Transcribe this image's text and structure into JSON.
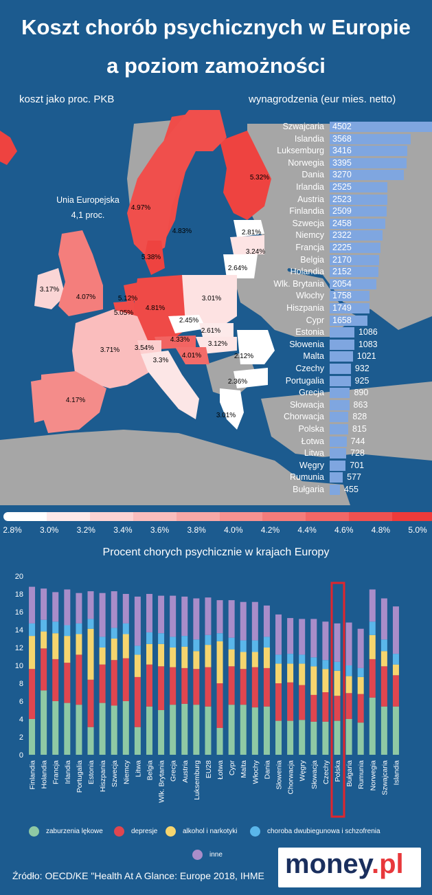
{
  "header": {
    "title_line1": "Koszt chorób psychicznych w Europie",
    "title_line2": "a poziom zamożności",
    "subtitle_left": "koszt jako proc. PKB",
    "subtitle_right": "wynagrodzenia (eur mies. netto)"
  },
  "map": {
    "eu_label_line1": "Unia Europejska",
    "eu_label_line2": "4,1 proc.",
    "colors": {
      "water": "#1c5b8f",
      "land_other": "#a6a6a6"
    },
    "country_labels": [
      "5.32%",
      "4.97%",
      "4.83%",
      "2.81%",
      "3.24%",
      "2.64%",
      "5.38%",
      "3.17%",
      "4.07%",
      "5.12%",
      "5.05%",
      "4.81%",
      "3.01%",
      "2.45%",
      "2.61%",
      "4.33%",
      "3.12%",
      "3.71%",
      "3.54%",
      "4.01%",
      "2.12%",
      "3.3%",
      "2.36%",
      "4.17%",
      "3.01%"
    ]
  },
  "scale": {
    "labels": [
      "2.8%",
      "3.0%",
      "3.2%",
      "3.4%",
      "3.6%",
      "3.8%",
      "4.0%",
      "4.2%",
      "4.4%",
      "4.6%",
      "4.8%",
      "5.0%"
    ],
    "colors": [
      "#ffffff",
      "#fde9e9",
      "#fcd3d3",
      "#fabdbd",
      "#f8a8a7",
      "#f69291",
      "#f47c7b",
      "#f26766",
      "#f05150",
      "#ee3b3a"
    ]
  },
  "wages": {
    "bar_color": "#7fa6e0",
    "max_value": 4502,
    "items": [
      {
        "country": "Szwajcaria",
        "value": 4502
      },
      {
        "country": "Islandia",
        "value": 3568
      },
      {
        "country": "Luksemburg",
        "value": 3416
      },
      {
        "country": "Norwegia",
        "value": 3395
      },
      {
        "country": "Dania",
        "value": 3270
      },
      {
        "country": "Irlandia",
        "value": 2525
      },
      {
        "country": "Austria",
        "value": 2523
      },
      {
        "country": "Finlandia",
        "value": 2509
      },
      {
        "country": "Szwecja",
        "value": 2458
      },
      {
        "country": "Niemcy",
        "value": 2322
      },
      {
        "country": "Francja",
        "value": 2225
      },
      {
        "country": "Belgia",
        "value": 2170
      },
      {
        "country": "Holandia",
        "value": 2152
      },
      {
        "country": "Wlk. Brytania",
        "value": 2054
      },
      {
        "country": "Włochy",
        "value": 1758
      },
      {
        "country": "Hiszpania",
        "value": 1749
      },
      {
        "country": "Cypr",
        "value": 1658
      },
      {
        "country": "Estonia",
        "value": 1086
      },
      {
        "country": "Słowenia",
        "value": 1083
      },
      {
        "country": "Malta",
        "value": 1021
      },
      {
        "country": "Czechy",
        "value": 932
      },
      {
        "country": "Portugalia",
        "value": 925
      },
      {
        "country": "Grecja",
        "value": 890
      },
      {
        "country": "Słowacja",
        "value": 863
      },
      {
        "country": "Chorwacja",
        "value": 828
      },
      {
        "country": "Polska",
        "value": 815
      },
      {
        "country": "Łotwa",
        "value": 744
      },
      {
        "country": "Litwa",
        "value": 728
      },
      {
        "country": "Węgry",
        "value": 701
      },
      {
        "country": "Rumunia",
        "value": 577
      },
      {
        "country": "Bułgaria",
        "value": 455
      }
    ]
  },
  "chart_data": {
    "type": "bar",
    "stacked": true,
    "title": "Procent chorych psychicznie w krajach Europy",
    "ylim": [
      0,
      20
    ],
    "yticks": [
      0,
      2,
      4,
      6,
      8,
      10,
      12,
      14,
      16,
      18,
      20
    ],
    "highlight": "Polska",
    "categories": [
      "Finlandia",
      "Holandia",
      "Francja",
      "Irlandia",
      "Portugalia",
      "Estonia",
      "Hiszpania",
      "Szwecja",
      "Niemcy",
      "Litwa",
      "Belgia",
      "Wlk. Brytania",
      "Grecja",
      "Austria",
      "Luksemburg",
      "EU28",
      "Łotwa",
      "Cypr",
      "Malta",
      "Włochy",
      "Dania",
      "Słowenia",
      "Chorwacja",
      "Węgry",
      "Słowacja",
      "Czechy",
      "Polska",
      "Bułgaria",
      "Rumunia",
      "Norwegia",
      "Szwajcaria",
      "Islandia"
    ],
    "series": [
      {
        "name": "zaburzenia lękowe",
        "color": "#8fc9a4",
        "values": [
          4.0,
          7.2,
          6.0,
          5.8,
          5.6,
          3.1,
          5.8,
          5.5,
          6.0,
          3.1,
          5.4,
          5.0,
          5.6,
          5.7,
          5.6,
          5.4,
          3.0,
          5.6,
          5.6,
          5.3,
          5.4,
          3.8,
          3.8,
          3.9,
          3.7,
          3.7,
          3.8,
          4.0,
          3.6,
          6.4,
          5.4,
          5.4
        ]
      },
      {
        "name": "depresje",
        "color": "#e0464f",
        "values": [
          5.6,
          4.7,
          4.7,
          4.5,
          5.6,
          5.3,
          4.3,
          5.1,
          4.8,
          5.6,
          4.7,
          4.9,
          4.2,
          4.0,
          4.0,
          4.4,
          5.0,
          4.3,
          4.0,
          4.5,
          4.3,
          4.2,
          4.3,
          3.9,
          3.0,
          3.3,
          2.8,
          2.9,
          3.2,
          4.3,
          4.5,
          3.5
        ]
      },
      {
        "name": "alkohol i narkotyki",
        "color": "#f6d56e",
        "values": [
          3.7,
          1.9,
          2.9,
          3.0,
          2.3,
          5.7,
          1.9,
          2.4,
          2.7,
          2.5,
          2.3,
          2.5,
          2.2,
          2.4,
          2.0,
          2.5,
          4.7,
          1.9,
          1.9,
          1.7,
          2.3,
          2.2,
          2.1,
          2.4,
          3.2,
          2.6,
          2.8,
          1.9,
          1.9,
          2.7,
          1.7,
          1.2
        ]
      },
      {
        "name": "choroba dwubiegunowa i schzofrenia",
        "color": "#5ab6ea",
        "values": [
          1.4,
          1.3,
          1.3,
          1.2,
          1.2,
          1.1,
          1.2,
          1.2,
          1.2,
          1.0,
          1.3,
          1.2,
          1.2,
          1.2,
          1.3,
          1.1,
          0.9,
          1.3,
          1.3,
          1.3,
          1.2,
          1.0,
          1.1,
          1.0,
          1.0,
          1.0,
          1.0,
          1.2,
          1.0,
          1.5,
          1.3,
          1.2
        ]
      },
      {
        "name": "inne",
        "color": "#a98dc9",
        "values": [
          4.1,
          3.5,
          3.3,
          4.0,
          3.4,
          3.1,
          4.9,
          4.1,
          3.3,
          5.5,
          4.3,
          4.2,
          4.6,
          4.4,
          4.6,
          4.2,
          3.7,
          4.2,
          4.3,
          4.3,
          3.5,
          4.5,
          4.0,
          4.0,
          4.3,
          4.3,
          4.3,
          4.8,
          4.4,
          3.6,
          4.6,
          5.3
        ]
      }
    ]
  },
  "footer": {
    "source": "Źródło: OECD/KE \"Health At A Glance: Europe 2018, IHME",
    "logo_main": "money",
    "logo_dot": ".",
    "logo_pl": "pl"
  }
}
